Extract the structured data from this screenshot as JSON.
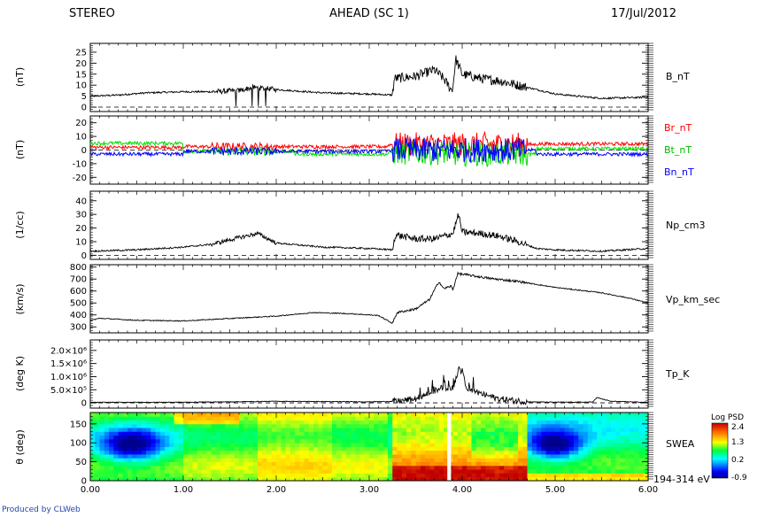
{
  "header": {
    "left": "STEREO",
    "center": "AHEAD (SC 1)",
    "right": "17/Jul/2012"
  },
  "footer": {
    "produced_by": "Produced by CLWeb"
  },
  "colors": {
    "Br": "#ff0000",
    "Bt": "#00dd00",
    "Bn": "#0000ff",
    "trace": "#000000"
  },
  "chart_data": [
    {
      "id": "b",
      "type": "line",
      "ylabel": "(nT)",
      "series": [
        {
          "name": "B_nT"
        }
      ],
      "ylim": [
        -2,
        29
      ],
      "ticks": [
        0,
        5,
        10,
        15,
        20,
        25
      ],
      "tick_labels": [
        "0",
        "5",
        "10",
        "15",
        "20",
        "25"
      ],
      "zero_line": true,
      "profile": [
        [
          0.0,
          5
        ],
        [
          0.3,
          5.5
        ],
        [
          0.6,
          6.5
        ],
        [
          1.0,
          7
        ],
        [
          1.3,
          7
        ],
        [
          1.6,
          7.5
        ],
        [
          1.75,
          9
        ],
        [
          2.0,
          8
        ],
        [
          2.5,
          6.5
        ],
        [
          3.0,
          6
        ],
        [
          3.25,
          5.5
        ],
        [
          3.27,
          13
        ],
        [
          3.5,
          14
        ],
        [
          3.7,
          17
        ],
        [
          3.8,
          13
        ],
        [
          3.88,
          8
        ],
        [
          3.9,
          9
        ],
        [
          3.93,
          22
        ],
        [
          4.0,
          15
        ],
        [
          4.2,
          13
        ],
        [
          4.4,
          12
        ],
        [
          4.6,
          10
        ],
        [
          5.0,
          6
        ],
        [
          5.5,
          4
        ],
        [
          6.0,
          4.5
        ]
      ]
    },
    {
      "id": "comp",
      "type": "line",
      "ylabel": "(nT)",
      "series": [
        {
          "name": "Br_nT"
        },
        {
          "name": "Bt_nT"
        },
        {
          "name": "Bn_nT"
        }
      ],
      "ylim": [
        -25,
        25
      ],
      "ticks": [
        -20,
        -10,
        0,
        10,
        20
      ],
      "tick_labels": [
        "-20",
        "-10",
        "0",
        "10",
        "20"
      ],
      "zero_line": true
    },
    {
      "id": "np",
      "type": "line",
      "ylabel": "(1/cc)",
      "series": [
        {
          "name": "Np_cm3"
        }
      ],
      "ylim": [
        -3,
        47
      ],
      "ticks": [
        0,
        10,
        20,
        30,
        40
      ],
      "tick_labels": [
        "0",
        "10",
        "20",
        "30",
        "40"
      ],
      "zero_line": true,
      "profile": [
        [
          0.0,
          3
        ],
        [
          0.5,
          4
        ],
        [
          1.0,
          6
        ],
        [
          1.3,
          8
        ],
        [
          1.6,
          13
        ],
        [
          1.8,
          16
        ],
        [
          2.0,
          9
        ],
        [
          2.5,
          6
        ],
        [
          3.0,
          5
        ],
        [
          3.25,
          4
        ],
        [
          3.28,
          15
        ],
        [
          3.5,
          12
        ],
        [
          3.7,
          12
        ],
        [
          3.8,
          14
        ],
        [
          3.9,
          16
        ],
        [
          3.96,
          30
        ],
        [
          4.0,
          17
        ],
        [
          4.2,
          16
        ],
        [
          4.4,
          14
        ],
        [
          4.6,
          10
        ],
        [
          4.8,
          5
        ],
        [
          5.0,
          4
        ],
        [
          5.5,
          3
        ],
        [
          6.0,
          5
        ]
      ]
    },
    {
      "id": "vp",
      "type": "line",
      "ylabel": "(km/s)",
      "series": [
        {
          "name": "Vp_km_sec"
        }
      ],
      "ylim": [
        250,
        820
      ],
      "ticks": [
        300,
        400,
        500,
        600,
        700,
        800
      ],
      "tick_labels": [
        "300",
        "400",
        "500",
        "600",
        "700",
        "800"
      ],
      "zero_line": false,
      "profile": [
        [
          0.0,
          355
        ],
        [
          0.1,
          372
        ],
        [
          0.5,
          355
        ],
        [
          1.0,
          350
        ],
        [
          1.5,
          370
        ],
        [
          2.0,
          390
        ],
        [
          2.4,
          420
        ],
        [
          2.8,
          410
        ],
        [
          3.1,
          395
        ],
        [
          3.25,
          330
        ],
        [
          3.3,
          420
        ],
        [
          3.5,
          450
        ],
        [
          3.65,
          530
        ],
        [
          3.75,
          680
        ],
        [
          3.8,
          620
        ],
        [
          3.88,
          640
        ],
        [
          3.9,
          610
        ],
        [
          3.95,
          745
        ],
        [
          4.05,
          735
        ],
        [
          4.3,
          705
        ],
        [
          4.6,
          680
        ],
        [
          5.0,
          630
        ],
        [
          5.5,
          585
        ],
        [
          5.8,
          540
        ],
        [
          6.0,
          500
        ]
      ]
    },
    {
      "id": "tp",
      "type": "line",
      "ylabel": "(deg K)",
      "series": [
        {
          "name": "Tp_K"
        }
      ],
      "ylim": [
        -200000,
        2400000
      ],
      "ticks": [
        0,
        500000,
        1000000,
        1500000,
        2000000
      ],
      "tick_labels": [
        "0",
        "5.0×10⁵",
        "1.0×10⁶",
        "1.5×10⁶",
        "2.0×10⁶"
      ],
      "zero_line": true,
      "profile": [
        [
          0.0,
          20000
        ],
        [
          1.0,
          25000
        ],
        [
          1.5,
          40000
        ],
        [
          2.0,
          60000
        ],
        [
          2.5,
          50000
        ],
        [
          3.0,
          40000
        ],
        [
          3.3,
          60000
        ],
        [
          3.5,
          150000
        ],
        [
          3.7,
          450000
        ],
        [
          3.8,
          600000
        ],
        [
          3.9,
          550000
        ],
        [
          3.97,
          1400000
        ],
        [
          4.05,
          600000
        ],
        [
          4.2,
          350000
        ],
        [
          4.4,
          150000
        ],
        [
          4.7,
          40000
        ],
        [
          5.0,
          25000
        ],
        [
          5.4,
          30000
        ],
        [
          5.45,
          200000
        ],
        [
          5.6,
          60000
        ],
        [
          6.0,
          20000
        ]
      ]
    },
    {
      "id": "swea",
      "type": "heatmap",
      "ylabel": "θ (deg)",
      "series": [
        {
          "name": "SWEA"
        }
      ],
      "energy_label": "194-314 eV",
      "ylim": [
        0,
        180
      ],
      "ticks": [
        0,
        50,
        100,
        150
      ],
      "tick_labels": [
        "0",
        "50",
        "100",
        "150"
      ],
      "colorbar": {
        "title": "Log PSD",
        "min": -0.9,
        "max": 2.4,
        "tick_labels": [
          "2.4",
          "1.3",
          "0.2",
          "-0.9"
        ]
      },
      "datagap_x": [
        3.84,
        3.88
      ]
    }
  ],
  "x_axis": {
    "xlim": [
      0,
      6
    ],
    "ticks": [
      0,
      1,
      2,
      3,
      4,
      5,
      6
    ],
    "tick_labels": [
      "0.00",
      "1.00",
      "2.00",
      "3.00",
      "4.00",
      "5.00",
      "6.00"
    ]
  }
}
